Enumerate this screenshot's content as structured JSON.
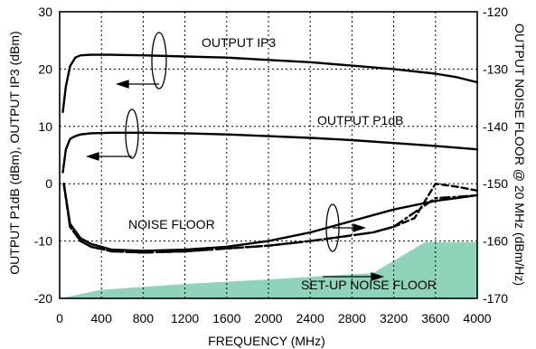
{
  "chart_data": {
    "type": "line",
    "xlabel": "FREQUENCY (MHz)",
    "ylabel_left": "OUTPUT P1dB (dBm), OUTPUT IP3 (dBm)",
    "ylabel_right": "OUTPUT NOISE FLOOR @ 20 MHz (dBm/Hz)",
    "xlim": [
      0,
      4000
    ],
    "ylim_left": [
      -20,
      30
    ],
    "ylim_right": [
      -170,
      -120
    ],
    "x_ticks": [
      "0",
      "400",
      "800",
      "1200",
      "1600",
      "2000",
      "2400",
      "2800",
      "3200",
      "3600",
      "4000"
    ],
    "y_ticks_left": [
      "-20",
      "-10",
      "0",
      "10",
      "20",
      "30"
    ],
    "y_ticks_right": [
      "-170",
      "-160",
      "-150",
      "-140",
      "-130",
      "-120"
    ],
    "grid": true,
    "annotations": {
      "ip3": "OUTPUT IP3",
      "p1db": "OUTPUT P1dB",
      "noise": "NOISE FLOOR",
      "setup": "SET-UP NOISE FLOOR"
    },
    "series": [
      {
        "name": "OUTPUT IP3",
        "axis": "left",
        "style": "solid",
        "x": [
          30,
          60,
          100,
          150,
          200,
          300,
          500,
          800,
          1200,
          1600,
          2000,
          2400,
          2800,
          3200,
          3600,
          3800,
          4000
        ],
        "y": [
          12.5,
          17,
          20.5,
          22,
          22.4,
          22.5,
          22.5,
          22.4,
          22.2,
          22,
          21.6,
          21.2,
          20.6,
          20,
          19.2,
          18.6,
          17.7
        ]
      },
      {
        "name": "OUTPUT P1dB",
        "axis": "left",
        "style": "solid",
        "x": [
          30,
          60,
          100,
          150,
          200,
          300,
          500,
          800,
          1200,
          1600,
          2000,
          2400,
          2800,
          3200,
          3600,
          3800,
          4000
        ],
        "y": [
          2,
          6,
          7.8,
          8.3,
          8.6,
          8.8,
          8.9,
          8.9,
          8.8,
          8.6,
          8.3,
          8,
          7.6,
          7.1,
          6.6,
          6.3,
          6
        ]
      },
      {
        "name": "NOISE FLOOR",
        "axis": "right",
        "style": "solid",
        "x": [
          40,
          100,
          200,
          300,
          500,
          800,
          1200,
          1600,
          2000,
          2400,
          2800,
          3200,
          3600,
          4000
        ],
        "y": [
          -150,
          -157,
          -159.5,
          -160.5,
          -161.5,
          -161.7,
          -161.5,
          -161,
          -160,
          -158.5,
          -156.5,
          -154.5,
          -153,
          -152
        ]
      },
      {
        "name": "NOISE FLOOR",
        "axis": "right",
        "style": "dash",
        "x": [
          40,
          100,
          200,
          300,
          500,
          800,
          1200,
          1600,
          2000,
          2400,
          2800,
          3000,
          3200,
          3400,
          3600,
          3800,
          4000
        ],
        "y": [
          -150,
          -157.5,
          -160,
          -161,
          -161.8,
          -162,
          -161.8,
          -161.3,
          -160.8,
          -160,
          -159,
          -158.5,
          -157.5,
          -156,
          -150,
          -150.5,
          -151.2
        ]
      },
      {
        "name": "NOISE FLOOR",
        "axis": "right",
        "style": "dashdot",
        "x": [
          40,
          100,
          200,
          300,
          500,
          800,
          1200,
          1600,
          2000,
          2400,
          2800,
          3000,
          3200,
          3400,
          3600,
          3800,
          4000
        ],
        "y": [
          -150,
          -157.5,
          -160,
          -161,
          -161.8,
          -162,
          -161.8,
          -161.3,
          -160.8,
          -160,
          -159,
          -158.5,
          -157.5,
          -155,
          -152.5,
          -152.3,
          -152
        ]
      },
      {
        "name": "SET-UP NOISE FLOOR",
        "axis": "right",
        "style": "fill",
        "color": "#8fd3b8",
        "x": [
          0,
          400,
          1200,
          2000,
          2800,
          3000,
          3500,
          4000
        ],
        "y": [
          -170,
          -168.5,
          -167.5,
          -166.7,
          -165.8,
          -165.6,
          -160.2,
          -160.2
        ]
      }
    ]
  }
}
